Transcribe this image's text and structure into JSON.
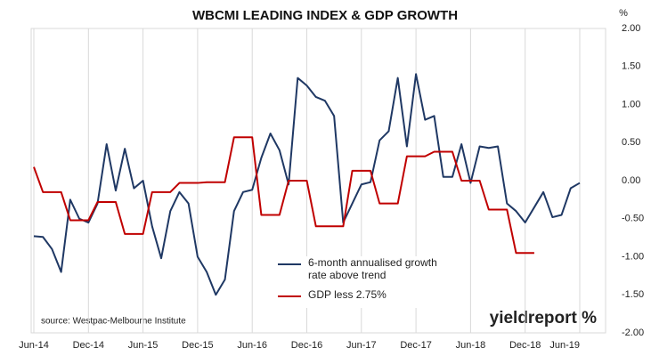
{
  "chart_data": {
    "type": "line",
    "title": "WBCMI LEADING INDEX & GDP GROWTH",
    "y_unit": "%",
    "source": "source: Westpac-Melbourne Institute",
    "logo": "yieldreport %",
    "categories": [
      "Jun-14",
      null,
      null,
      null,
      null,
      null,
      "Dec-14",
      null,
      null,
      null,
      null,
      null,
      "Jun-15",
      null,
      null,
      null,
      null,
      null,
      "Dec-15",
      null,
      null,
      null,
      null,
      null,
      "Jun-16",
      null,
      null,
      null,
      null,
      null,
      "Dec-16",
      null,
      null,
      null,
      null,
      null,
      "Jun-17",
      null,
      null,
      null,
      null,
      null,
      "Dec-17",
      null,
      null,
      null,
      null,
      null,
      "Jun-18",
      null,
      null,
      null,
      null,
      null,
      "Dec-18",
      null,
      null,
      null,
      null,
      null,
      "Jun-19"
    ],
    "series": [
      {
        "name": "6-month annualised growth rate above trend",
        "color": "#1f3864",
        "values": [
          -0.73,
          -0.74,
          -0.9,
          -1.2,
          -0.25,
          -0.5,
          -0.55,
          -0.3,
          0.48,
          -0.13,
          0.42,
          -0.1,
          0.0,
          -0.6,
          -1.02,
          -0.4,
          -0.15,
          -0.3,
          -1.0,
          -1.2,
          -1.5,
          -1.3,
          -0.4,
          -0.15,
          -0.12,
          0.3,
          0.62,
          0.4,
          -0.05,
          1.35,
          1.25,
          1.1,
          1.05,
          0.85,
          -0.55,
          -0.3,
          -0.05,
          -0.02,
          0.53,
          0.65,
          1.35,
          0.45,
          1.4,
          0.8,
          0.85,
          0.05,
          0.05,
          0.48,
          -0.03,
          0.45,
          0.43,
          0.45,
          -0.3,
          -0.4,
          -0.55,
          -0.35,
          -0.15,
          -0.48,
          -0.45,
          -0.1,
          -0.03
        ]
      },
      {
        "name": "GDP less 2.75%",
        "color": "#c00000",
        "values": [
          0.18,
          -0.15,
          -0.15,
          -0.15,
          -0.52,
          -0.52,
          -0.52,
          -0.28,
          -0.28,
          -0.28,
          -0.7,
          -0.7,
          -0.7,
          -0.15,
          -0.15,
          -0.15,
          -0.03,
          -0.03,
          -0.03,
          -0.02,
          -0.02,
          -0.02,
          0.57,
          0.57,
          0.57,
          -0.45,
          -0.45,
          -0.45,
          0.0,
          0.0,
          0.0,
          -0.6,
          -0.6,
          -0.6,
          -0.6,
          0.13,
          0.13,
          0.13,
          -0.3,
          -0.3,
          -0.3,
          0.32,
          0.32,
          0.32,
          0.38,
          0.38,
          0.38,
          0.0,
          0.0,
          0.0,
          -0.38,
          -0.38,
          -0.38,
          -0.95,
          -0.95,
          -0.95,
          null,
          null,
          null,
          null,
          null
        ]
      }
    ],
    "ylim": [
      -2,
      2
    ],
    "yticks": [
      {
        "value": 2,
        "label": "2.00"
      },
      {
        "value": 1.5,
        "label": "1.50"
      },
      {
        "value": 1,
        "label": "1.00"
      },
      {
        "value": 0.5,
        "label": "0.50"
      },
      {
        "value": 0,
        "label": "0.00"
      },
      {
        "value": -0.5,
        "label": "-0.50"
      },
      {
        "value": -1,
        "label": "-1.00"
      },
      {
        "value": -1.5,
        "label": "-1.50"
      },
      {
        "value": -2,
        "label": "-2.00"
      }
    ],
    "y_axis_side": "right",
    "grid": "vertical"
  }
}
